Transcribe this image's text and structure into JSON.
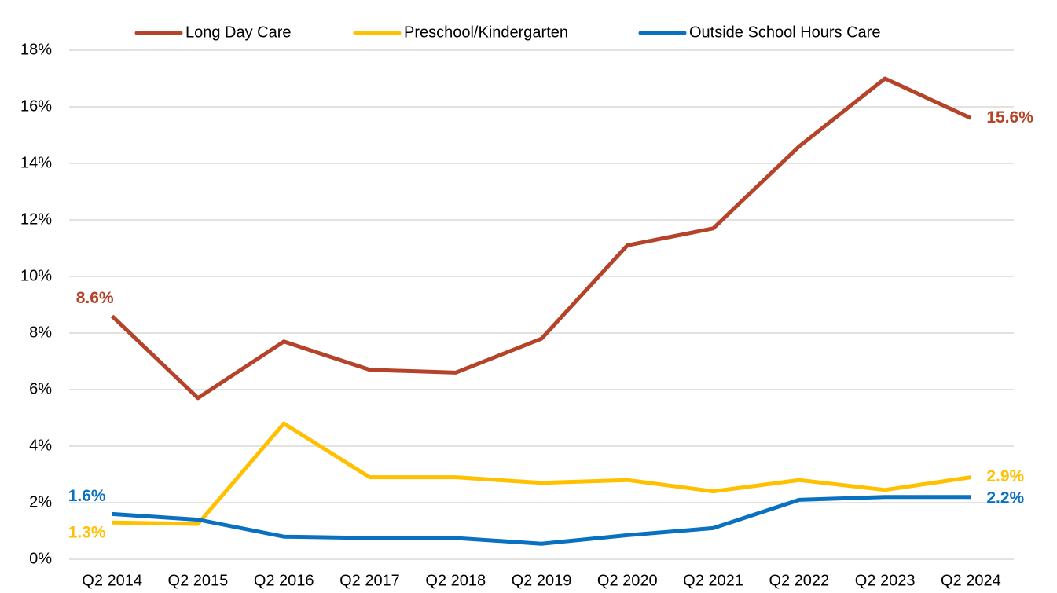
{
  "chart_data": {
    "type": "line",
    "categories": [
      "Q2 2014",
      "Q2 2015",
      "Q2 2016",
      "Q2 2017",
      "Q2 2018",
      "Q2 2019",
      "Q2 2020",
      "Q2 2021",
      "Q2 2022",
      "Q2 2023",
      "Q2 2024"
    ],
    "series": [
      {
        "name": "Long Day Care",
        "color": "#b5432a",
        "values": [
          8.6,
          5.7,
          7.7,
          6.7,
          6.6,
          7.8,
          11.1,
          11.7,
          14.6,
          17.0,
          15.6
        ],
        "value_labels": [
          "8.6%",
          null,
          null,
          null,
          null,
          null,
          null,
          null,
          null,
          null,
          "15.6%"
        ]
      },
      {
        "name": "Preschool/Kindergarten",
        "color": "#ffc000",
        "values": [
          1.3,
          1.25,
          4.8,
          2.9,
          2.9,
          2.7,
          2.8,
          2.4,
          2.8,
          2.45,
          2.9
        ],
        "value_labels": [
          "1.3%",
          null,
          null,
          null,
          null,
          null,
          null,
          null,
          null,
          null,
          "2.9%"
        ]
      },
      {
        "name": "Outside School Hours Care",
        "color": "#0a70c0",
        "values": [
          1.6,
          1.4,
          0.8,
          0.75,
          0.75,
          0.55,
          0.85,
          1.1,
          2.1,
          2.2,
          2.2
        ],
        "value_labels": [
          "1.6%",
          null,
          null,
          null,
          null,
          null,
          null,
          null,
          null,
          null,
          "2.2%"
        ]
      }
    ],
    "ylim": [
      0,
      18
    ],
    "yticks": [
      {
        "value": 0,
        "label": "0%"
      },
      {
        "value": 2,
        "label": "2%"
      },
      {
        "value": 4,
        "label": "4%"
      },
      {
        "value": 6,
        "label": "6%"
      },
      {
        "value": 8,
        "label": "8%"
      },
      {
        "value": 10,
        "label": "10%"
      },
      {
        "value": 12,
        "label": "12%"
      },
      {
        "value": 14,
        "label": "14%"
      },
      {
        "value": 16,
        "label": "16%"
      },
      {
        "value": 18,
        "label": "18%"
      }
    ],
    "grid": true,
    "legend": "top"
  }
}
